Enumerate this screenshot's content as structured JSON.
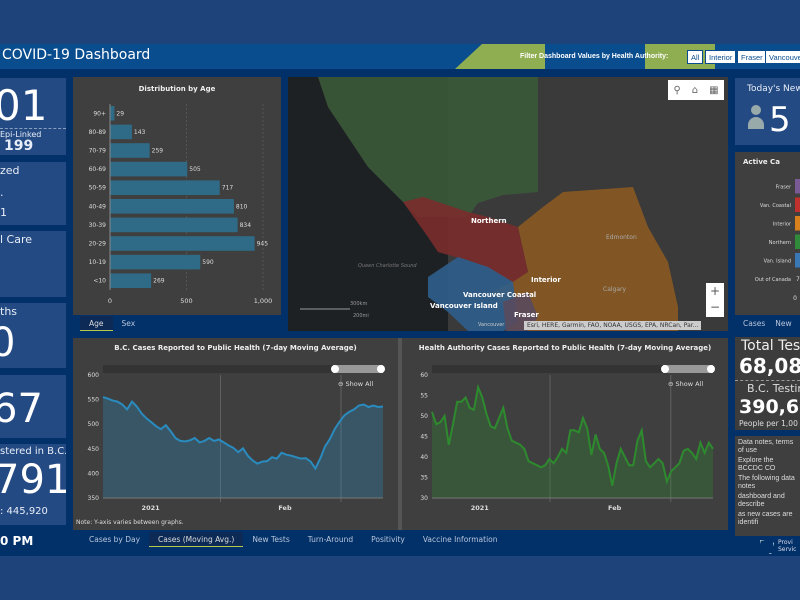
{
  "header": {
    "title": "COVID-19 Dashboard",
    "filter_label": "Filter Dashboard Values by Health Authority:",
    "filters": [
      "All",
      "Interior",
      "Fraser",
      "Vancouver"
    ]
  },
  "left_cards": [
    {
      "big": "01",
      "sub_label": "Epi-Linked",
      "sub_value": "199"
    },
    {
      "label": "zed",
      "line1": ".",
      "line2": "1"
    },
    {
      "label": "l Care"
    },
    {
      "label": "ths",
      "big": "0"
    },
    {
      "big": "67"
    },
    {
      "label": "stered in B.C.",
      "big": "791",
      "sub": ": 445,920"
    }
  ],
  "time_text": "0 PM",
  "age_chart": {
    "tabs": [
      "Age",
      "Sex"
    ],
    "active_tab": "Age"
  },
  "map": {
    "labels": {
      "northern": "Northern",
      "interior": "Interior",
      "van_coastal": "Vancouver Coastal",
      "van_island": "Vancouver Island",
      "fraser": "Fraser",
      "vancouver": "Vancouver",
      "edmonton": "Edmonton",
      "calgary": "Calgary",
      "sound": "Queen Charlotte Sound"
    },
    "scale_km": "300km",
    "scale_mi": "200mi",
    "attribution": "Esri, HERE, Garmin, FAO, NOAA, USGS, EPA, NRCan, Par...",
    "colors": {
      "northern": "#3b5a3a",
      "interior": "#8a5a22",
      "coastal": "#7a2c2c",
      "island": "#2f5e8c",
      "fraser": "#5a4a5e"
    }
  },
  "right": {
    "new_cases_label": "Today's New C",
    "new_cases_value": "5",
    "active_title": "Active Ca",
    "active_tabs": [
      "Cases",
      "New"
    ],
    "total_tests_label": "Total Tes",
    "total_tests_value": "68,08",
    "bc_testing_label": "B.C. Testing",
    "bc_testing_value": "390,64",
    "bc_testing_sub": "People per 1,00",
    "notes": [
      "Data notes, terms of use",
      "Explore the BCCDC CO",
      "The following data notes",
      "dashboard and describe",
      "as new cases are identifi"
    ],
    "logo_text": [
      "Provi",
      "Servic"
    ]
  },
  "line_tabs": [
    "Cases by Day",
    "Cases (Moving Avg.)",
    "New Tests",
    "Turn-Around",
    "Positivity",
    "Vaccine Information"
  ],
  "active_line_tab": "Cases (Moving Avg.)",
  "show_all": "Show All",
  "note_text": "Note: Y-axis varies between graphs.",
  "chart_data": [
    {
      "type": "bar",
      "title": "Distribution by Age",
      "categories": [
        "90+",
        "80-89",
        "70-79",
        "60-69",
        "50-59",
        "40-49",
        "30-39",
        "20-29",
        "10-19",
        "<10"
      ],
      "values": [
        29,
        143,
        259,
        505,
        717,
        810,
        834,
        945,
        590,
        269
      ],
      "xlim": [
        0,
        1000
      ],
      "xticks": [
        "0",
        "500",
        "1,000"
      ],
      "color": "#2f6b86"
    },
    {
      "type": "bar",
      "title": "Active Ca",
      "categories": [
        "Fraser",
        "Van. Coastal",
        "Interior",
        "Northern",
        "Van. Island",
        "Out of Canada"
      ],
      "colors": [
        "#7a5a94",
        "#c0302c",
        "#d8811c",
        "#2f8a3a",
        "#3a78b5",
        "#3f3f3f"
      ],
      "value_labels": [
        "",
        "",
        "",
        "",
        "",
        "7"
      ],
      "xticks": [
        "0"
      ]
    },
    {
      "type": "area",
      "title": "B.C. Cases Reported to Public Health (7-day Moving Average)",
      "ylim": [
        350,
        600
      ],
      "yticks": [
        "350",
        "400",
        "450",
        "500",
        "550",
        "600"
      ],
      "xlabels": [
        "2021",
        "Feb"
      ],
      "color": "#2a8bbf",
      "values": [
        555,
        552,
        548,
        546,
        540,
        530,
        546,
        536,
        522,
        512,
        504,
        496,
        490,
        498,
        486,
        472,
        466,
        465,
        467,
        472,
        463,
        466,
        472,
        466,
        469,
        463,
        457,
        452,
        443,
        451,
        436,
        426,
        420,
        424,
        425,
        433,
        430,
        442,
        438,
        436,
        433,
        430,
        431,
        424,
        410,
        430,
        455,
        470,
        490,
        505,
        518,
        525,
        530,
        538,
        540,
        535,
        538,
        535,
        536
      ]
    },
    {
      "type": "area",
      "title": "Health Authority Cases Reported to Public Health (7-day Moving Average)",
      "ylim": [
        30,
        60
      ],
      "yticks": [
        "30",
        "35",
        "40",
        "45",
        "50",
        "55",
        "60"
      ],
      "xlabels": [
        "2021",
        "Feb"
      ],
      "color": "#2e8a2e",
      "values": [
        51,
        48,
        48.5,
        50,
        43,
        48,
        53.5,
        53.5,
        54.5,
        52,
        51.5,
        57,
        54.5,
        50.5,
        47.5,
        47,
        49.5,
        52,
        47,
        44,
        43.5,
        43,
        42,
        39,
        38.5,
        38,
        37.5,
        38,
        39.5,
        38.5,
        40,
        42,
        41,
        46.5,
        46.5,
        46,
        49.5,
        47,
        40.5,
        45.5,
        42,
        41,
        38,
        33,
        38.5,
        42,
        40,
        38,
        38,
        44,
        46.5,
        39,
        37.5,
        38.5,
        39.5,
        38.5,
        34,
        36.5,
        37.5,
        38.5,
        41.5,
        42,
        41,
        39.5,
        43.5,
        41,
        43.5,
        42
      ]
    }
  ]
}
